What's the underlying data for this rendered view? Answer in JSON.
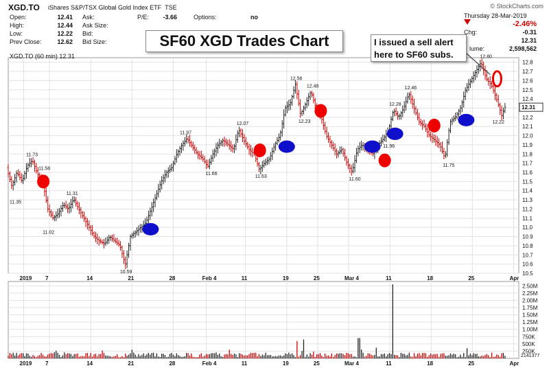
{
  "header": {
    "ticker": "XGD.TO",
    "name": "iShares S&P/TSX Global Gold Index ETF",
    "exchange": "TSE",
    "copyright": "© StockCharts.com",
    "date_label": "Thursday  28-Mar-2019",
    "change_pct": "-2.46%",
    "stats": [
      {
        "label": "Open:",
        "value": "12.41"
      },
      {
        "label": "High:",
        "value": "12.44"
      },
      {
        "label": "Low:",
        "value": "12.22"
      },
      {
        "label": "Prev Close:",
        "value": "12.62"
      }
    ],
    "stats2": [
      {
        "label": "Ask:"
      },
      {
        "label": "Ask Size:"
      },
      {
        "label": "Bid:"
      },
      {
        "label": "Bid Size:"
      }
    ],
    "pe_label": "P/E:",
    "pe_value": "-3.66",
    "options_label": "Options:",
    "options_value": "no",
    "chg_label": "Chg:",
    "chg_value": "-0.31",
    "last_value": "12.31",
    "volume_label": "lume:",
    "volume_value": "2,598,562",
    "legend": "XGD.TO (60 min) 12.31"
  },
  "title": "SF60 XGD Trades Chart",
  "annotation": [
    "I issued a sell alert",
    "here to SF60 subs."
  ],
  "colors": {
    "up": "#222222",
    "down": "#cc0000",
    "buy": "#1010cc",
    "sell": "#ee0000",
    "grid": "#e2e2e2"
  },
  "chart_data": {
    "type": "line",
    "price_axis": {
      "min": 10.5,
      "max": 12.85,
      "ticks": [
        10.5,
        10.6,
        10.7,
        10.8,
        10.9,
        11.0,
        11.1,
        11.2,
        11.3,
        11.4,
        11.5,
        11.6,
        11.7,
        11.8,
        11.9,
        12.0,
        12.1,
        12.2,
        12.3,
        12.4,
        12.5,
        12.6,
        12.7,
        12.8
      ]
    },
    "last_price": "12.31",
    "x_labels": [
      {
        "t": 1.5,
        "label": "2019"
      },
      {
        "t": 4.0,
        "label": "7"
      },
      {
        "t": 8.0,
        "label": "14"
      },
      {
        "t": 12.0,
        "label": "21"
      },
      {
        "t": 16.0,
        "label": "28"
      },
      {
        "t": 19.2,
        "label": "Feb 4"
      },
      {
        "t": 23.0,
        "label": "11"
      },
      {
        "t": 27.0,
        "label": "19"
      },
      {
        "t": 30.0,
        "label": "25"
      },
      {
        "t": 33.0,
        "label": "Mar 4"
      },
      {
        "t": 37.0,
        "label": "11"
      },
      {
        "t": 41.0,
        "label": "18"
      },
      {
        "t": 45.0,
        "label": "25"
      },
      {
        "t": 49.0,
        "label": "Apr"
      }
    ],
    "x_range": [
      0,
      49.5
    ],
    "price_path": [
      [
        0,
        11.65
      ],
      [
        0.5,
        11.45
      ],
      [
        1.0,
        11.6
      ],
      [
        1.5,
        11.5
      ],
      [
        2.0,
        11.67
      ],
      [
        2.5,
        11.73
      ],
      [
        3.0,
        11.58
      ],
      [
        3.5,
        11.5
      ],
      [
        4.0,
        11.2
      ],
      [
        4.5,
        11.1
      ],
      [
        5.0,
        11.15
      ],
      [
        5.5,
        11.25
      ],
      [
        6.0,
        11.2
      ],
      [
        6.5,
        11.31
      ],
      [
        7.0,
        11.2
      ],
      [
        7.5,
        11.1
      ],
      [
        8.0,
        11.0
      ],
      [
        8.5,
        10.9
      ],
      [
        9.0,
        10.85
      ],
      [
        9.5,
        10.82
      ],
      [
        10.0,
        10.9
      ],
      [
        10.5,
        10.85
      ],
      [
        11.0,
        10.8
      ],
      [
        11.5,
        10.59
      ],
      [
        12.0,
        10.9
      ],
      [
        12.5,
        10.95
      ],
      [
        13.0,
        11.0
      ],
      [
        13.5,
        11.05
      ],
      [
        14.0,
        11.2
      ],
      [
        14.5,
        11.35
      ],
      [
        15.0,
        11.5
      ],
      [
        15.5,
        11.6
      ],
      [
        16.0,
        11.65
      ],
      [
        16.5,
        11.8
      ],
      [
        17.0,
        11.9
      ],
      [
        17.5,
        11.97
      ],
      [
        18.0,
        11.88
      ],
      [
        18.5,
        11.8
      ],
      [
        19.0,
        11.75
      ],
      [
        19.5,
        11.66
      ],
      [
        20.0,
        11.8
      ],
      [
        20.5,
        11.9
      ],
      [
        21.0,
        11.95
      ],
      [
        21.5,
        11.9
      ],
      [
        22.0,
        11.85
      ],
      [
        22.5,
        12.07
      ],
      [
        23.0,
        11.95
      ],
      [
        23.5,
        11.85
      ],
      [
        24.0,
        11.8
      ],
      [
        24.5,
        11.63
      ],
      [
        25.0,
        11.7
      ],
      [
        25.5,
        11.75
      ],
      [
        26.0,
        11.9
      ],
      [
        26.5,
        12.0
      ],
      [
        27.0,
        12.3
      ],
      [
        27.5,
        12.35
      ],
      [
        28.0,
        12.56
      ],
      [
        28.5,
        12.23
      ],
      [
        29.0,
        12.35
      ],
      [
        29.5,
        12.48
      ],
      [
        30.0,
        12.3
      ],
      [
        30.5,
        12.2
      ],
      [
        31.0,
        12.0
      ],
      [
        31.5,
        11.9
      ],
      [
        32.0,
        11.8
      ],
      [
        32.5,
        11.85
      ],
      [
        33.0,
        11.7
      ],
      [
        33.5,
        11.6
      ],
      [
        34.0,
        11.85
      ],
      [
        34.5,
        11.9
      ],
      [
        35.0,
        11.85
      ],
      [
        35.5,
        11.8
      ],
      [
        36.0,
        11.9
      ],
      [
        36.5,
        11.96
      ],
      [
        37.0,
        12.05
      ],
      [
        37.5,
        12.28
      ],
      [
        38.0,
        12.2
      ],
      [
        38.5,
        12.3
      ],
      [
        39.0,
        12.46
      ],
      [
        39.5,
        12.3
      ],
      [
        40.0,
        12.15
      ],
      [
        40.5,
        12.1
      ],
      [
        41.0,
        12.0
      ],
      [
        41.5,
        11.95
      ],
      [
        42.0,
        11.9
      ],
      [
        42.5,
        11.75
      ],
      [
        43.0,
        12.15
      ],
      [
        43.5,
        12.2
      ],
      [
        44.0,
        12.3
      ],
      [
        44.5,
        12.5
      ],
      [
        45.0,
        12.6
      ],
      [
        45.5,
        12.7
      ],
      [
        46.0,
        12.8
      ],
      [
        46.5,
        12.62
      ],
      [
        47.0,
        12.55
      ],
      [
        47.5,
        12.4
      ],
      [
        48.0,
        12.22
      ],
      [
        48.3,
        12.31
      ]
    ],
    "price_labels": [
      {
        "t": 2.4,
        "p": 11.73,
        "text": "11.73"
      },
      {
        "t": 3.6,
        "p": 11.58,
        "text": "11.58"
      },
      {
        "t": 0.8,
        "p": 11.35,
        "text": "11.35"
      },
      {
        "t": 6.3,
        "p": 11.31,
        "text": "11.31"
      },
      {
        "t": 4.0,
        "p": 11.02,
        "text": "11.02"
      },
      {
        "t": 11.5,
        "p": 10.59,
        "text": "10.59"
      },
      {
        "t": 17.3,
        "p": 11.97,
        "text": "11.97"
      },
      {
        "t": 19.8,
        "p": 11.66,
        "text": "11.66"
      },
      {
        "t": 22.8,
        "p": 12.07,
        "text": "12.07"
      },
      {
        "t": 24.6,
        "p": 11.63,
        "text": "11.63"
      },
      {
        "t": 28.0,
        "p": 12.56,
        "text": "12.56"
      },
      {
        "t": 29.6,
        "p": 12.48,
        "text": "12.48"
      },
      {
        "t": 28.8,
        "p": 12.23,
        "text": "12.23"
      },
      {
        "t": 33.7,
        "p": 11.6,
        "text": "11.60"
      },
      {
        "t": 37.6,
        "p": 12.28,
        "text": "12.28"
      },
      {
        "t": 39.1,
        "p": 12.46,
        "text": "12.46"
      },
      {
        "t": 37.0,
        "p": 11.96,
        "text": "11.96"
      },
      {
        "t": 42.8,
        "p": 11.75,
        "text": "11.75"
      },
      {
        "t": 46.4,
        "p": 12.8,
        "text": "12.80"
      },
      {
        "t": 47.6,
        "p": 12.22,
        "text": "12.22"
      }
    ],
    "signals": [
      {
        "t": 3.4,
        "p": 11.5,
        "kind": "sell"
      },
      {
        "t": 13.8,
        "p": 10.98,
        "kind": "buy"
      },
      {
        "t": 24.4,
        "p": 11.84,
        "kind": "sell"
      },
      {
        "t": 27.0,
        "p": 11.88,
        "kind": "buy"
      },
      {
        "t": 30.3,
        "p": 12.27,
        "kind": "sell"
      },
      {
        "t": 35.3,
        "p": 11.88,
        "kind": "buy"
      },
      {
        "t": 36.5,
        "p": 11.73,
        "kind": "sell"
      },
      {
        "t": 37.5,
        "p": 12.02,
        "kind": "buy"
      },
      {
        "t": 41.3,
        "p": 12.11,
        "kind": "sell"
      },
      {
        "t": 44.4,
        "p": 12.17,
        "kind": "buy"
      },
      {
        "t": 47.4,
        "p": 12.62,
        "kind": "ring"
      }
    ],
    "volume_axis": {
      "ticks": [
        "2.50M",
        "2.25M",
        "2.00M",
        "1.75M",
        "1.50M",
        "1.25M",
        "1.00M",
        "750K",
        "500K",
        "250K"
      ],
      "max": 2.65,
      "last_label": "2141377"
    },
    "volume_spikes": [
      {
        "t": 28.0,
        "v": 0.6
      },
      {
        "t": 28.6,
        "v": 0.65
      },
      {
        "t": 34.0,
        "v": 0.7
      },
      {
        "t": 37.3,
        "v": 2.55
      },
      {
        "t": 44.5,
        "v": 0.35
      },
      {
        "t": 21.5,
        "v": 0.3
      },
      {
        "t": 12.0,
        "v": 0.3
      }
    ]
  }
}
